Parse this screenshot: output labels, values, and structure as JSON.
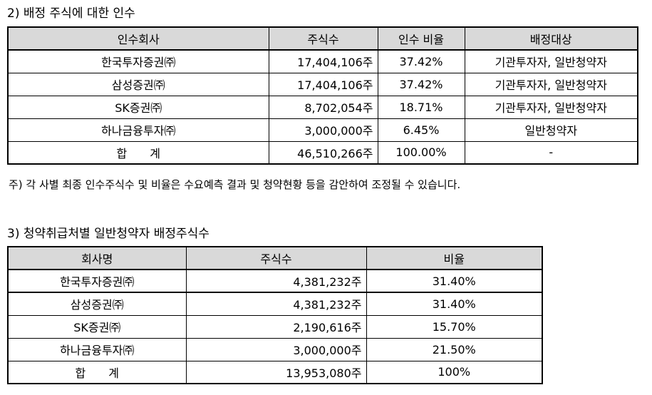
{
  "section2": {
    "title": "2) 배정 주식에 대한 인수",
    "headers": [
      "인수회사",
      "주식수",
      "인수 비율",
      "배정대상"
    ],
    "rows": [
      [
        "한국투자증권㈜",
        "17,404,106주",
        "37.42%",
        "기관투자자, 일반청약자"
      ],
      [
        "삼성증권㈜",
        "17,404,106주",
        "37.42%",
        "기관투자자, 일반청약자"
      ],
      [
        "SK증권㈜",
        "8,702,054주",
        "18.71%",
        "기관투자자, 일반청약자"
      ],
      [
        "하나금융투자㈜",
        "3,000,000주",
        "6.45%",
        "일반청약자"
      ]
    ],
    "total": [
      "합　　계",
      "46,510,266주",
      "100.00%",
      "-"
    ],
    "note": "주) 각 사별 최종 인수주식수 및 비율은 수요예측 결과 및 청약현황 등을 감안하여 조정될 수 있습니다."
  },
  "section3": {
    "title": "3) 청약취급처별 일반청약자 배정주식수",
    "headers": [
      "회사명",
      "주식수",
      "비율"
    ],
    "rows": [
      [
        "한국투자증권㈜",
        "4,381,232주",
        "31.40%"
      ],
      [
        "삼성증권㈜",
        "4,381,232주",
        "31.40%"
      ],
      [
        "SK증권㈜",
        "2,190,616주",
        "15.70%"
      ],
      [
        "하나금융투자㈜",
        "3,000,000주",
        "21.50%"
      ]
    ],
    "total": [
      "합　　계",
      "13,953,080주",
      "100%"
    ]
  }
}
